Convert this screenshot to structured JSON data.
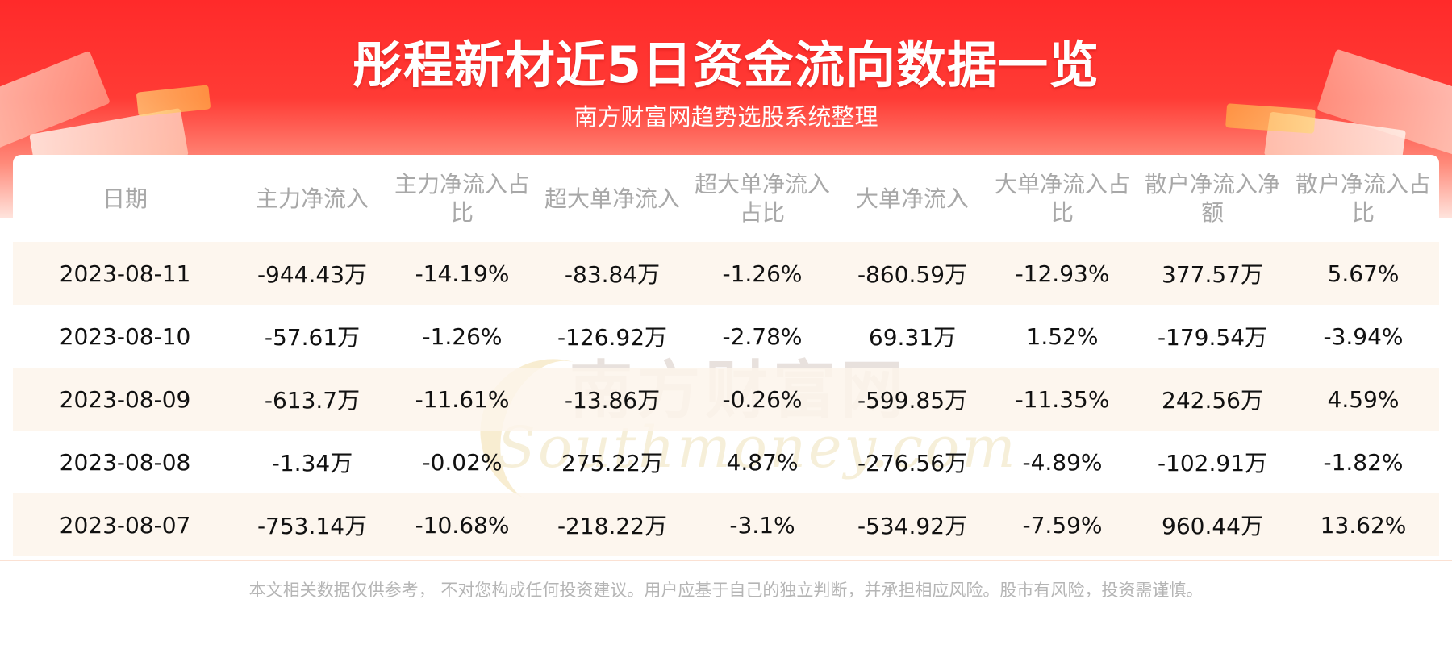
{
  "header": {
    "title": "彤程新材近5日资金流向数据一览",
    "subtitle": "南方财富网趋势选股系统整理"
  },
  "watermark": {
    "cn": "南方财富网",
    "en": "Southmoney.com"
  },
  "table": {
    "columns": [
      "日期",
      "主力净流入",
      "主力净流入占比",
      "超大单净流入",
      "超大单净流入占比",
      "大单净流入",
      "大单净流入占比",
      "散户净流入净额",
      "散户净流入占比"
    ],
    "rows": [
      [
        "2023-08-11",
        "-944.43万",
        "-14.19%",
        "-83.84万",
        "-1.26%",
        "-860.59万",
        "-12.93%",
        "377.57万",
        "5.67%"
      ],
      [
        "2023-08-10",
        "-57.61万",
        "-1.26%",
        "-126.92万",
        "-2.78%",
        "69.31万",
        "1.52%",
        "-179.54万",
        "-3.94%"
      ],
      [
        "2023-08-09",
        "-613.7万",
        "-11.61%",
        "-13.86万",
        "-0.26%",
        "-599.85万",
        "-11.35%",
        "242.56万",
        "4.59%"
      ],
      [
        "2023-08-08",
        "-1.34万",
        "-0.02%",
        "275.22万",
        "4.87%",
        "-276.56万",
        "-4.89%",
        "-102.91万",
        "-1.82%"
      ],
      [
        "2023-08-07",
        "-753.14万",
        "-10.68%",
        "-218.22万",
        "-3.1%",
        "-534.92万",
        "-7.59%",
        "960.44万",
        "13.62%"
      ]
    ]
  },
  "footer": {
    "disclaimer": "本文相关数据仅供参考， 不对您构成任何投资建议。用户应基于自己的独立判断，并承担相应风险。股市有风险，投资需谨慎。"
  },
  "colors": {
    "banner_red": "#ff2a2a",
    "header_text": "#a8a8a8",
    "row_stripe": "#fdf4eb"
  }
}
